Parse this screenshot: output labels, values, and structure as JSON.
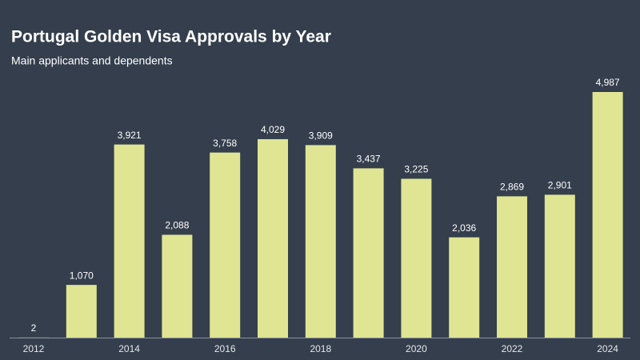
{
  "chart_data": {
    "type": "bar",
    "title": "Portugal Golden Visa Approvals by Year",
    "subtitle": "Main applicants and dependents",
    "categories": [
      "2012",
      null,
      "2014",
      null,
      "2016",
      null,
      "2018",
      null,
      "2020",
      null,
      "2022",
      null,
      "2024"
    ],
    "values": [
      2,
      1070,
      3921,
      2088,
      3758,
      4029,
      3909,
      3437,
      3225,
      2036,
      2869,
      2901,
      4987
    ],
    "value_labels": [
      "2",
      "1,070",
      "3,921",
      "2,088",
      "3,758",
      "4,029",
      "3,909",
      "3,437",
      "3,225",
      "2,036",
      "2,869",
      "2,901",
      "4,987"
    ],
    "color": "#dfe592"
  }
}
